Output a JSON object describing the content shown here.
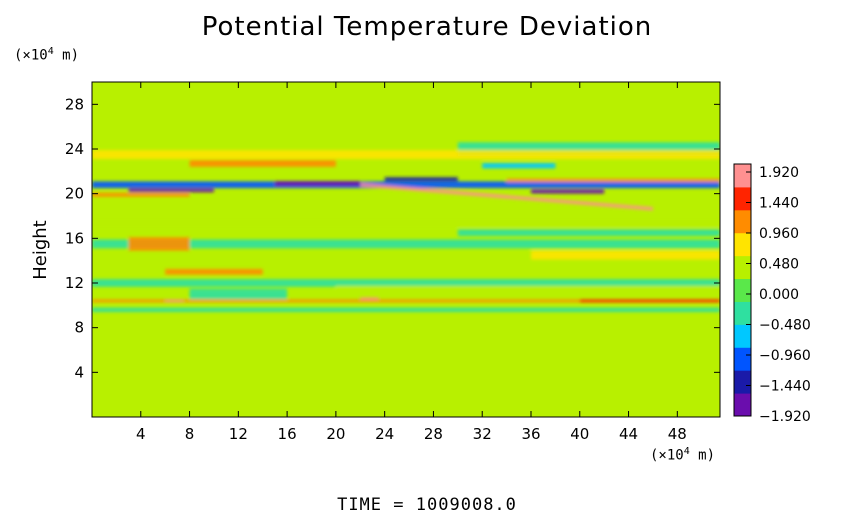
{
  "chart_data": {
    "type": "heatmap",
    "title": "Potential Temperature Deviation",
    "ylabel": "Height",
    "y_unit_prefix": "(×10",
    "y_unit_exp": "4",
    "y_unit_suffix": " m)",
    "x_unit_prefix": "(×10",
    "x_unit_exp": "4",
    "x_unit_suffix": " m)",
    "xlim": [
      0,
      51.5
    ],
    "ylim": [
      0,
      30
    ],
    "xticks": [
      4,
      8,
      12,
      16,
      20,
      24,
      28,
      32,
      36,
      40,
      44,
      48
    ],
    "yticks": [
      4,
      8,
      12,
      16,
      20,
      24,
      28
    ],
    "colorbar": {
      "levels": [
        "1.920",
        "1.440",
        "0.960",
        "0.480",
        "0.000",
        "−0.480",
        "−0.960",
        "−1.440",
        "−1.920"
      ],
      "range": [
        -1.92,
        1.92
      ],
      "colors": [
        "#6a0dad",
        "#1a1aa8",
        "#0055ff",
        "#00c8ff",
        "#2fe0a0",
        "#5ae84a",
        "#b8f000",
        "#ffe400",
        "#ff8c00",
        "#ff2400",
        "#ff9090"
      ]
    },
    "background_value": 0.2,
    "features": [
      {
        "x0": 0,
        "x1": 51.5,
        "y": 20.8,
        "thick": 0.6,
        "value": -0.9,
        "note": "cool band"
      },
      {
        "x0": 3,
        "x1": 10,
        "y": 20.3,
        "thick": 0.35,
        "value": -1.7
      },
      {
        "x0": 15,
        "x1": 22,
        "y": 20.9,
        "thick": 0.45,
        "value": -1.8
      },
      {
        "x0": 24,
        "x1": 30,
        "y": 21.3,
        "thick": 0.35,
        "value": -1.5
      },
      {
        "x0": 36,
        "x1": 42,
        "y": 20.2,
        "thick": 0.4,
        "value": -1.6
      },
      {
        "x0": 22,
        "x1": 46,
        "y": 20.8,
        "thick": 0.3,
        "value": 1.9,
        "slope": -0.09
      },
      {
        "x0": 0,
        "x1": 8,
        "y": 19.9,
        "thick": 0.35,
        "value": 1.2
      },
      {
        "x0": 8,
        "x1": 20,
        "y": 22.7,
        "thick": 0.6,
        "value": 1.1
      },
      {
        "x0": 34,
        "x1": 51.5,
        "y": 21.2,
        "thick": 0.3,
        "value": 0.9
      },
      {
        "x0": 32,
        "x1": 38,
        "y": 22.5,
        "thick": 0.5,
        "value": -0.8
      },
      {
        "x0": 30,
        "x1": 51.5,
        "y": 24.0,
        "thick": 1.2,
        "value": -0.3
      },
      {
        "x0": 0,
        "x1": 51.5,
        "y": 23.5,
        "thick": 0.8,
        "value": 0.55
      },
      {
        "x0": 0,
        "x1": 51.5,
        "y": 17.5,
        "thick": 1.0,
        "value": 0.45
      },
      {
        "x0": 0,
        "x1": 51.5,
        "y": 15.5,
        "thick": 0.8,
        "value": -0.25
      },
      {
        "x0": 3,
        "x1": 8,
        "y": 15.5,
        "thick": 1.2,
        "value": 0.9
      },
      {
        "x0": 6,
        "x1": 14,
        "y": 13.0,
        "thick": 0.5,
        "value": 1.0
      },
      {
        "x0": 0,
        "x1": 51.5,
        "y": 12.0,
        "thick": 0.7,
        "value": -0.35
      },
      {
        "x0": 8,
        "x1": 16,
        "y": 11.0,
        "thick": 1.0,
        "value": -0.5
      },
      {
        "x0": 20,
        "x1": 51.5,
        "y": 11.5,
        "thick": 0.5,
        "value": 0.5
      },
      {
        "x0": 0,
        "x1": 51.5,
        "y": 10.4,
        "thick": 0.25,
        "value": 0.9
      },
      {
        "x0": 6,
        "x1": 7.5,
        "y": 10.4,
        "thick": 0.2,
        "value": 1.8
      },
      {
        "x0": 22,
        "x1": 23.5,
        "y": 10.6,
        "thick": 0.2,
        "value": 1.8
      },
      {
        "x0": 40,
        "x1": 51.5,
        "y": 10.4,
        "thick": 0.25,
        "value": 1.3
      },
      {
        "x0": 0,
        "x1": 51.5,
        "y": 9.6,
        "thick": 0.4,
        "value": -0.25
      },
      {
        "x0": 36,
        "x1": 51.5,
        "y": 14.5,
        "thick": 0.8,
        "value": 0.6
      },
      {
        "x0": 30,
        "x1": 51.5,
        "y": 16.5,
        "thick": 0.6,
        "value": -0.3
      }
    ]
  },
  "footer": {
    "time_label": "TIME",
    "time_sep": "=",
    "time_value": "1009008.0"
  }
}
